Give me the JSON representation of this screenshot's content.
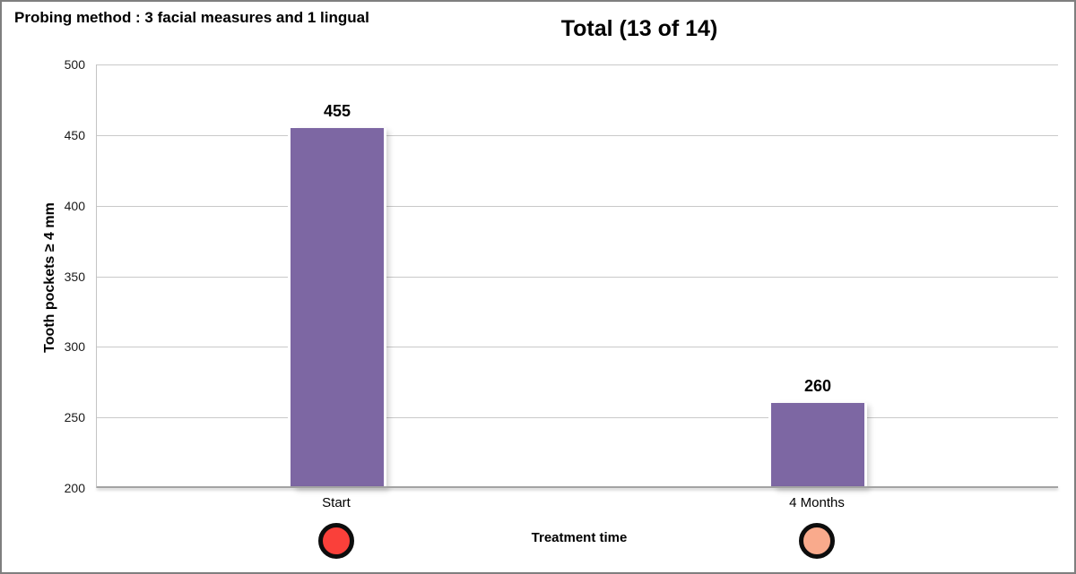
{
  "header": {
    "probing_note": "Probing method : 3 facial measures and 1 lingual"
  },
  "chart_data": {
    "type": "bar",
    "title": "Total (13 of 14)",
    "categories": [
      "Start",
      "4 Months"
    ],
    "values": [
      455,
      260
    ],
    "xlabel": "Treatment time",
    "ylabel": "Tooth pockets ≥ 4 mm",
    "ylim": [
      200,
      500
    ],
    "yticks": [
      500,
      450,
      400,
      350,
      300,
      250,
      200
    ],
    "grid": "horizontal",
    "legend": "none",
    "bar_color": "#7d67a3",
    "marker_border_color": "#0d0d0d",
    "category_markers": [
      {
        "name": "start-marker",
        "color": "#fa403a"
      },
      {
        "name": "4-months-marker",
        "color": "#f9aa8c"
      }
    ]
  }
}
